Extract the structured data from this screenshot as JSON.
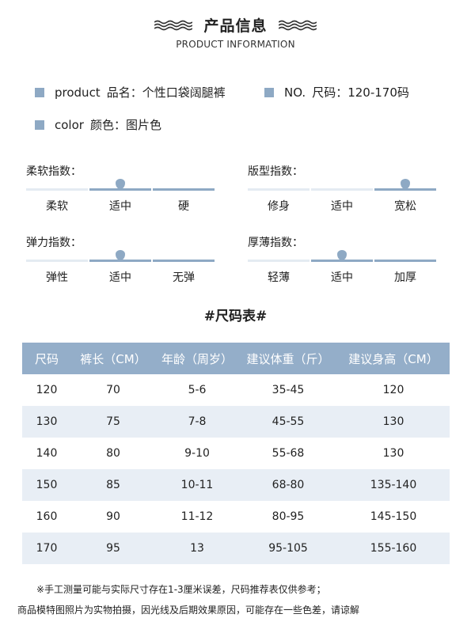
{
  "header": {
    "title": "产品信息",
    "subtitle": "PRODUCT INFORMATION"
  },
  "info": {
    "product_en": "product",
    "product_value": "品名：个性口袋阔腿裤",
    "size_en": "NO.",
    "size_value": "尺码：120-170码",
    "color_en": "color",
    "color_value": "颜色：图片色"
  },
  "indices": [
    {
      "title": "柔软指数：",
      "labels": [
        "柔软",
        "适中",
        "硬"
      ],
      "level": 1
    },
    {
      "title": "版型指数：",
      "labels": [
        "修身",
        "适中",
        "宽松"
      ],
      "level": 2
    },
    {
      "title": "弹力指数：",
      "labels": [
        "弹性",
        "适中",
        "无弹"
      ],
      "level": 1
    },
    {
      "title": "厚薄指数：",
      "labels": [
        "轻薄",
        "适中",
        "加厚"
      ],
      "level": 1
    }
  ],
  "size_table": {
    "title": "#尺码表#",
    "headers": [
      "尺码",
      "裤长（CM）",
      "年龄（周岁）",
      "建议体重（斤）",
      "建议身高（CM）"
    ],
    "rows": [
      [
        "120",
        "70",
        "5-6",
        "35-45",
        "120"
      ],
      [
        "130",
        "75",
        "7-8",
        "45-55",
        "130"
      ],
      [
        "140",
        "80",
        "9-10",
        "55-68",
        "130"
      ],
      [
        "150",
        "85",
        "10-11",
        "68-80",
        "135-140"
      ],
      [
        "160",
        "90",
        "11-12",
        "80-95",
        "145-150"
      ],
      [
        "170",
        "95",
        "13",
        "95-105",
        "155-160"
      ]
    ]
  },
  "notes": {
    "line1": "※手工测量可能与实际尺寸存在1-3厘米误差，尺码推荐表仅供参考；",
    "line2": "商品模特图照片为实物拍摄，因光线及后期效果原因，可能存在一些色差，请谅解"
  },
  "colors": {
    "accent": "#8ea9c4",
    "table_header": "#94aec9",
    "row_alt": "#e8eef5",
    "track": "#e4ebf2"
  }
}
